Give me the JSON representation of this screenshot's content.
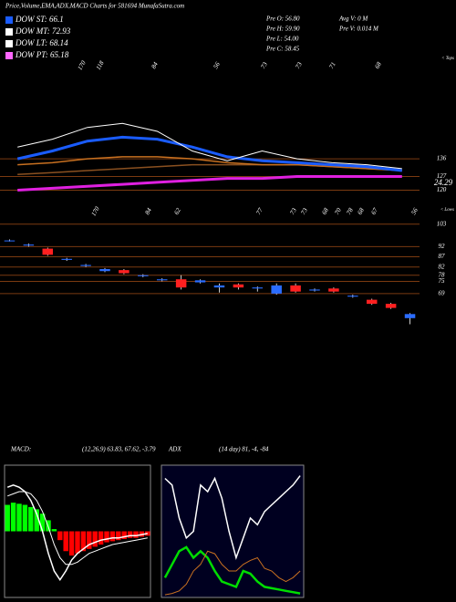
{
  "header": {
    "title": "Price,Volume,EMA,ADX,MACD Charts for 581694  MunafaSutra.com",
    "legend": [
      {
        "label": "DOW ST: 66.1",
        "color": "#1a5cff"
      },
      {
        "label": "DOW MT: 72.93",
        "color": "#ffffff"
      },
      {
        "label": "DOW LT: 68.14",
        "color": "#ffffff"
      },
      {
        "label": "DOW PT: 65.18",
        "color": "#ff66ff"
      }
    ],
    "stats": [
      "Pre O: 56.80",
      "Pre H: 59.90",
      "Pre L: 54.00",
      "Pre C: 58.45",
      "Avg V: 0  M",
      "Pre  V: 0.014  M"
    ]
  },
  "chart_data": [
    {
      "type": "line",
      "annotation": "< Tops",
      "labels": [
        "170",
        "118",
        "84",
        "56",
        "73",
        "73",
        "71",
        "68"
      ],
      "badge": "24.29",
      "categories": [
        null,
        null,
        null,
        null,
        null,
        null,
        null,
        null,
        null,
        null,
        null,
        null
      ],
      "series": [
        {
          "color": "#8a5020",
          "width": 1.5,
          "values": [
            128,
            129,
            130,
            131,
            132,
            133,
            133,
            133,
            133,
            132,
            131,
            130
          ]
        },
        {
          "color": "#c87020",
          "width": 1.5,
          "values": [
            133,
            134,
            136,
            137,
            137,
            136,
            134,
            133,
            133,
            132,
            131,
            130
          ]
        },
        {
          "color": "#e020e0",
          "width": 3,
          "values": [
            120,
            121,
            122,
            123,
            124,
            125,
            126,
            126,
            127,
            127,
            127,
            127
          ]
        },
        {
          "color": "#1a5cff",
          "width": 3,
          "values": [
            136,
            140,
            145,
            147,
            146,
            142,
            137,
            135,
            134,
            133,
            132,
            130
          ]
        },
        {
          "color": "#ffffff",
          "width": 1,
          "values": [
            142,
            146,
            152,
            154,
            150,
            140,
            135,
            140,
            136,
            134,
            133,
            131
          ]
        }
      ],
      "ylim": [
        117,
        189
      ],
      "yticks": [
        136,
        127,
        120
      ],
      "grid": true,
      "grid_color": "#7a3a10"
    },
    {
      "type": "candlestick",
      "annotation": "< Lows",
      "labels": [
        "170",
        "84",
        "62",
        "77",
        "73",
        "73",
        "68",
        "70",
        "78",
        "68",
        "67",
        "56"
      ],
      "categories": [
        null,
        null,
        null,
        null,
        null,
        null,
        null,
        null,
        null,
        null,
        null,
        null,
        null,
        null,
        null,
        null,
        null,
        null,
        null,
        null,
        null,
        null
      ],
      "open": [
        95,
        93,
        88,
        86,
        83,
        81,
        79,
        78,
        76,
        72,
        75.5,
        73,
        72,
        72,
        73,
        70,
        71,
        70,
        68,
        64,
        62,
        59
      ],
      "close": [
        94.8,
        92.5,
        91,
        85.5,
        82.5,
        80,
        80.5,
        77.5,
        75.5,
        76,
        74.5,
        72,
        73.5,
        71.5,
        69,
        73,
        70.5,
        71.5,
        67.5,
        66,
        64,
        57
      ],
      "high": [
        95.5,
        93.5,
        91.5,
        86.5,
        83.5,
        81.5,
        81,
        78.5,
        76.5,
        78,
        76,
        74,
        74,
        72.5,
        74,
        74,
        71.5,
        72,
        68.5,
        66.5,
        64.5,
        59.5
      ],
      "low": [
        94.5,
        92,
        87.5,
        85,
        82,
        79.5,
        78.5,
        77,
        75,
        71,
        74,
        69.5,
        71,
        70,
        68.5,
        69.5,
        70,
        69.5,
        67,
        63.5,
        61.5,
        54
      ],
      "up_color": "#ff2020",
      "down_color": "#2a6cff",
      "ylim": [
        52,
        110
      ],
      "yticks": [
        103,
        92,
        87,
        82,
        78,
        75,
        69
      ],
      "grid": true,
      "grid_color": "#7a3a10"
    },
    {
      "type": "macd",
      "title": "MACD:",
      "subtitle": "(12,26,9) 63.83, 67.62, -3.79",
      "categories": [
        null,
        null,
        null,
        null,
        null,
        null,
        null,
        null,
        null,
        null,
        null,
        null,
        null,
        null,
        null,
        null,
        null,
        null,
        null,
        null,
        null,
        null,
        null,
        null,
        null
      ],
      "histogram": {
        "pos_color": "#00ff00",
        "neg_color": "#ff0000",
        "values": [
          1.2,
          1.3,
          1.25,
          1.2,
          1.1,
          1.0,
          0.8,
          0.5,
          0.1,
          -0.4,
          -0.9,
          -1.1,
          -1.0,
          -0.9,
          -0.8,
          -0.7,
          -0.6,
          -0.5,
          -0.45,
          -0.4,
          -0.35,
          -0.3,
          -0.3,
          -0.25,
          -0.2
        ]
      },
      "series": [
        {
          "color": "#ffffff",
          "width": 1,
          "values": [
            1.6,
            1.7,
            1.8,
            1.8,
            1.7,
            1.4,
            0.9,
            0.2,
            -0.6,
            -1.2,
            -1.5,
            -1.5,
            -1.4,
            -1.2,
            -1.0,
            -0.9,
            -0.8,
            -0.7,
            -0.6,
            -0.55,
            -0.5,
            -0.45,
            -0.4,
            -0.35,
            -0.3
          ]
        },
        {
          "color": "#ffffff",
          "width": 1.5,
          "values": [
            2.0,
            2.1,
            2.0,
            1.8,
            1.4,
            0.8,
            0,
            -1,
            -1.8,
            -2.2,
            -1.8,
            -1.3,
            -1.0,
            -0.8,
            -0.6,
            -0.5,
            -0.4,
            -0.35,
            -0.3,
            -0.3,
            -0.25,
            -0.2,
            -0.2,
            -0.15,
            -0.1
          ]
        }
      ],
      "ylim": [
        -3,
        3
      ],
      "background": "#000000"
    },
    {
      "type": "line",
      "title": "ADX",
      "subtitle": "(14  day) 81, -4, -84",
      "categories": [
        null,
        null,
        null,
        null,
        null,
        null,
        null,
        null,
        null,
        null,
        null,
        null,
        null,
        null,
        null,
        null,
        null,
        null,
        null,
        null
      ],
      "series": [
        {
          "color": "#ffffff",
          "width": 1.5,
          "values": [
            90,
            85,
            60,
            45,
            50,
            85,
            80,
            90,
            75,
            50,
            30,
            45,
            60,
            55,
            65,
            70,
            75,
            80,
            85,
            92
          ]
        },
        {
          "color": "#00dd00",
          "width": 2.5,
          "values": [
            15,
            25,
            35,
            38,
            30,
            35,
            30,
            20,
            12,
            10,
            8,
            20,
            18,
            12,
            8,
            7,
            6,
            5,
            4,
            3
          ]
        },
        {
          "color": "#c87020",
          "width": 1,
          "values": [
            2,
            3,
            5,
            10,
            20,
            25,
            35,
            33,
            25,
            20,
            20,
            25,
            28,
            30,
            22,
            20,
            15,
            12,
            15,
            20
          ]
        }
      ],
      "ylim": [
        0,
        100
      ],
      "background": "#000020"
    }
  ]
}
